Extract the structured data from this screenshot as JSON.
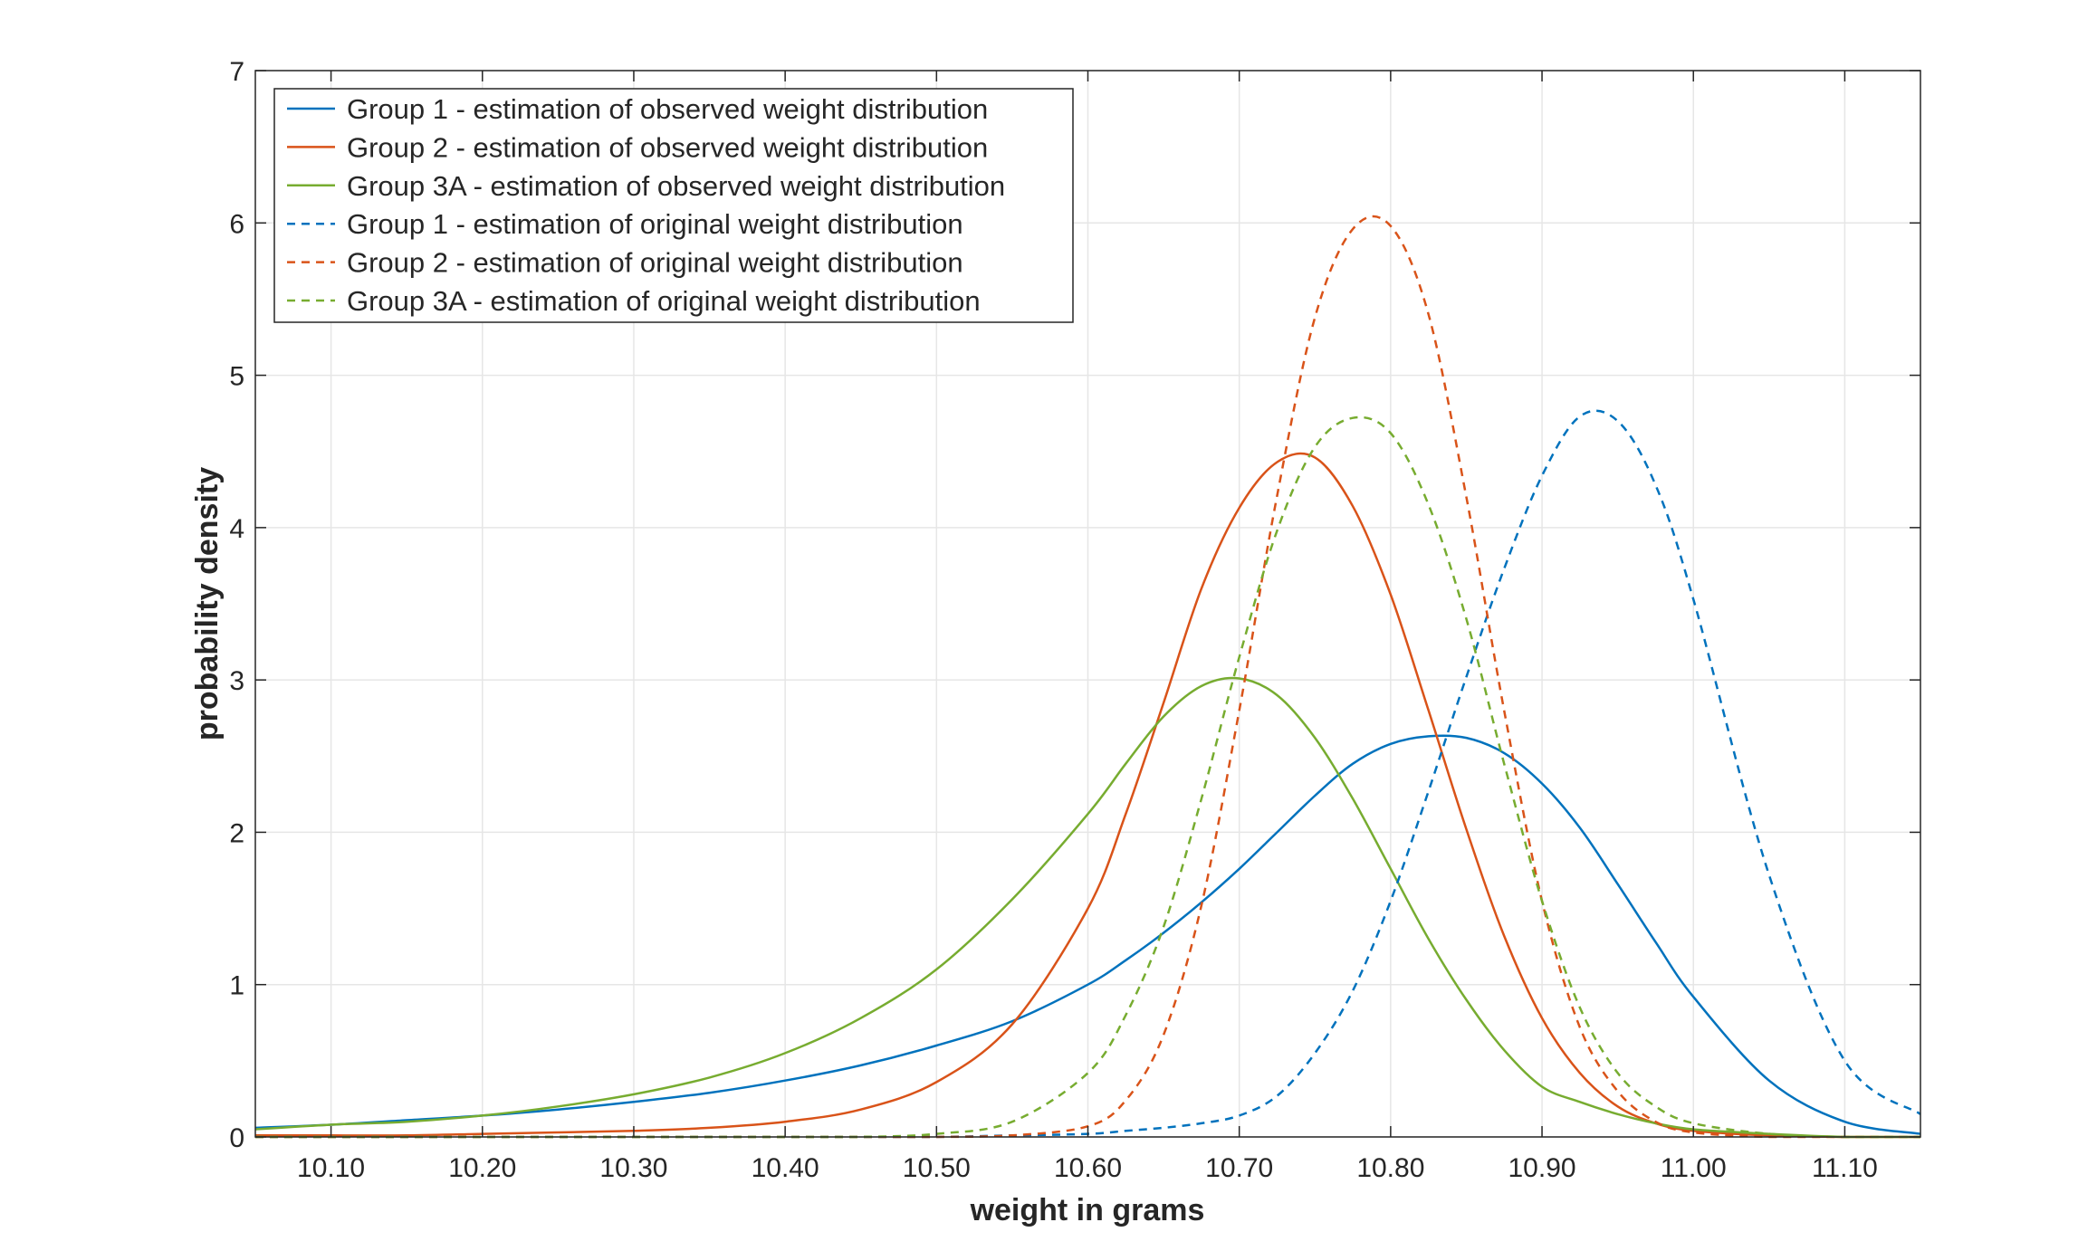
{
  "chart_data": {
    "type": "line",
    "title": "",
    "xlabel": "weight in grams",
    "ylabel": "probability density",
    "xlim": [
      10.05,
      11.15
    ],
    "ylim": [
      0,
      7
    ],
    "xticks": [
      10.1,
      10.2,
      10.3,
      10.4,
      10.5,
      10.6,
      10.7,
      10.8,
      10.9,
      11.0,
      11.1
    ],
    "xtick_labels": [
      "10.10",
      "10.20",
      "10.30",
      "10.40",
      "10.50",
      "10.60",
      "10.70",
      "10.80",
      "10.90",
      "11.00",
      "11.10"
    ],
    "yticks": [
      0,
      1,
      2,
      3,
      4,
      5,
      6,
      7
    ],
    "ytick_labels": [
      "0",
      "1",
      "2",
      "3",
      "4",
      "5",
      "6",
      "7"
    ],
    "grid": true,
    "legend_position": "top-left",
    "x": [
      10.05,
      10.1,
      10.15,
      10.2,
      10.25,
      10.3,
      10.35,
      10.4,
      10.45,
      10.5,
      10.55,
      10.6,
      10.625,
      10.65,
      10.675,
      10.7,
      10.725,
      10.75,
      10.775,
      10.8,
      10.825,
      10.85,
      10.875,
      10.9,
      10.925,
      10.95,
      10.975,
      11.0,
      11.05,
      11.1,
      11.15
    ],
    "series": [
      {
        "name": "Group 1 - estimation of observed weight distribution",
        "color": "#0072BD",
        "dash": "solid",
        "values": [
          0.06,
          0.08,
          0.11,
          0.14,
          0.18,
          0.23,
          0.29,
          0.37,
          0.47,
          0.6,
          0.76,
          1.0,
          1.16,
          1.34,
          1.54,
          1.76,
          2.0,
          2.24,
          2.45,
          2.58,
          2.63,
          2.62,
          2.52,
          2.32,
          2.03,
          1.66,
          1.28,
          0.92,
          0.37,
          0.1,
          0.02
        ]
      },
      {
        "name": "Group 2 - estimation of observed weight distribution",
        "color": "#D95319",
        "dash": "solid",
        "values": [
          0.01,
          0.01,
          0.01,
          0.02,
          0.03,
          0.04,
          0.06,
          0.1,
          0.18,
          0.36,
          0.74,
          1.5,
          2.12,
          2.85,
          3.6,
          4.13,
          4.43,
          4.46,
          4.14,
          3.56,
          2.8,
          2.02,
          1.32,
          0.78,
          0.42,
          0.2,
          0.09,
          0.04,
          0.01,
          0.0,
          0.0
        ]
      },
      {
        "name": "Group 3A - estimation of observed weight distribution",
        "color": "#77AC30",
        "dash": "solid",
        "values": [
          0.05,
          0.08,
          0.1,
          0.14,
          0.2,
          0.28,
          0.39,
          0.55,
          0.78,
          1.1,
          1.56,
          2.12,
          2.45,
          2.76,
          2.96,
          3.01,
          2.9,
          2.62,
          2.22,
          1.76,
          1.3,
          0.9,
          0.57,
          0.33,
          0.23,
          0.15,
          0.09,
          0.05,
          0.02,
          0.0,
          0.0
        ]
      },
      {
        "name": "Group 1 - estimation of original weight distribution",
        "color": "#0072BD",
        "dash": "dashed",
        "values": [
          0.0,
          0.0,
          0.0,
          0.0,
          0.0,
          0.0,
          0.0,
          0.0,
          0.0,
          0.0,
          0.01,
          0.02,
          0.04,
          0.06,
          0.09,
          0.14,
          0.27,
          0.55,
          0.96,
          1.55,
          2.27,
          3.02,
          3.73,
          4.34,
          4.73,
          4.7,
          4.28,
          3.53,
          1.72,
          0.5,
          0.15
        ]
      },
      {
        "name": "Group 2 - estimation of original weight distribution",
        "color": "#D95319",
        "dash": "dashed",
        "values": [
          0.0,
          0.0,
          0.0,
          0.0,
          0.0,
          0.0,
          0.0,
          0.0,
          0.0,
          0.0,
          0.01,
          0.07,
          0.24,
          0.67,
          1.52,
          2.8,
          4.21,
          5.38,
          5.96,
          5.98,
          5.4,
          4.2,
          2.8,
          1.55,
          0.72,
          0.3,
          0.1,
          0.03,
          0.0,
          0.0,
          0.0
        ]
      },
      {
        "name": "Group 3A - estimation of original weight distribution",
        "color": "#77AC30",
        "dash": "dashed",
        "values": [
          0.0,
          0.0,
          0.0,
          0.0,
          0.0,
          0.0,
          0.0,
          0.0,
          0.0,
          0.02,
          0.1,
          0.42,
          0.8,
          1.38,
          2.22,
          3.15,
          3.98,
          4.53,
          4.72,
          4.62,
          4.15,
          3.4,
          2.45,
          1.55,
          0.85,
          0.42,
          0.2,
          0.09,
          0.02,
          0.0,
          0.0
        ]
      }
    ]
  }
}
